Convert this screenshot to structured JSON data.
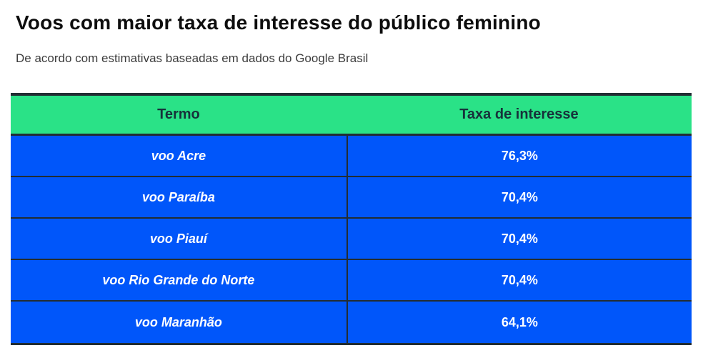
{
  "header": {
    "title": "Voos com maior taxa de interesse do público feminino",
    "subtitle": "De acordo com estimativas baseadas em dados do Google Brasil"
  },
  "table": {
    "columns": {
      "termo": "Termo",
      "taxa": "Taxa de interesse"
    },
    "rows": [
      {
        "termo": "voo Acre",
        "taxa": "76,3%"
      },
      {
        "termo": "voo Paraíba",
        "taxa": "70,4%"
      },
      {
        "termo": "voo Piauí",
        "taxa": "70,4%"
      },
      {
        "termo": "voo Rio Grande do Norte",
        "taxa": "70,4%"
      },
      {
        "termo": "voo Maranhão",
        "taxa": "64,1%"
      }
    ]
  },
  "colors": {
    "header_row_bg": "#2ae287",
    "data_row_bg": "#0056fa",
    "table_border": "#222d33",
    "header_text": "#17313b",
    "data_text": "#ffffff",
    "title_text": "#0d0d0d",
    "subtitle_text": "#3c3c3c"
  },
  "chart_data": {
    "type": "table",
    "title": "Voos com maior taxa de interesse do público feminino",
    "subtitle": "De acordo com estimativas baseadas em dados do Google Brasil",
    "columns": [
      "Termo",
      "Taxa de interesse"
    ],
    "categories": [
      "voo Acre",
      "voo Paraíba",
      "voo Piauí",
      "voo Rio Grande do Norte",
      "voo Maranhão"
    ],
    "values": [
      76.3,
      70.4,
      70.4,
      70.4,
      64.1
    ],
    "value_labels": [
      "76,3%",
      "70,4%",
      "70,4%",
      "70,4%",
      "64,1%"
    ],
    "unit": "%"
  }
}
